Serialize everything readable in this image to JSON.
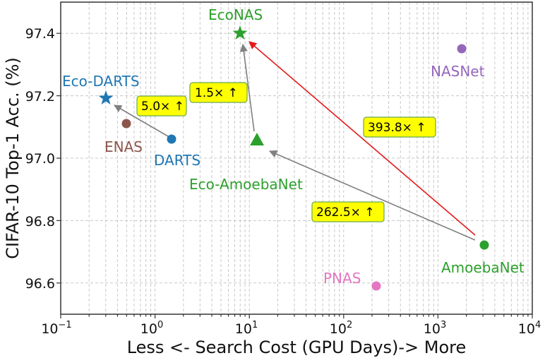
{
  "chart_data": {
    "type": "scatter",
    "title": "",
    "xlabel": "Less <- Search Cost (GPU Days)-> More",
    "ylabel": "CIFAR-10 Top-1 Acc. (%)",
    "xscale": "log",
    "xlim": [
      0.1,
      10000
    ],
    "ylim": [
      96.5,
      97.5
    ],
    "grid": true,
    "legend": null,
    "x_ticks": [
      {
        "base": "10",
        "exp": "−1",
        "value": 0.1
      },
      {
        "base": "10",
        "exp": "0",
        "value": 1
      },
      {
        "base": "10",
        "exp": "1",
        "value": 10
      },
      {
        "base": "10",
        "exp": "2",
        "value": 100
      },
      {
        "base": "10",
        "exp": "3",
        "value": 1000
      },
      {
        "base": "10",
        "exp": "4",
        "value": 10000
      }
    ],
    "y_ticks": [
      "96.6",
      "96.8",
      "97.0",
      "97.2",
      "97.4"
    ],
    "points": [
      {
        "name": "Eco-DARTS",
        "x": 0.3,
        "y": 97.19,
        "marker": "star",
        "color": "#1f77b4"
      },
      {
        "name": "ENAS",
        "x": 0.5,
        "y": 97.11,
        "marker": "circle",
        "color": "#8c564b"
      },
      {
        "name": "DARTS",
        "x": 1.5,
        "y": 97.06,
        "marker": "circle",
        "color": "#1f77b4"
      },
      {
        "name": "EcoNAS",
        "x": 8,
        "y": 97.4,
        "marker": "star",
        "color": "#2ca02c"
      },
      {
        "name": "Eco-AmoebaNet",
        "x": 12,
        "y": 97.06,
        "marker": "triangle",
        "color": "#2ca02c"
      },
      {
        "name": "NASNet",
        "x": 1800,
        "y": 97.35,
        "marker": "circle",
        "color": "#9467bd"
      },
      {
        "name": "AmoebaNet",
        "x": 3150,
        "y": 96.72,
        "marker": "circle",
        "color": "#2ca02c"
      },
      {
        "name": "PNAS",
        "x": 225,
        "y": 96.59,
        "marker": "circle",
        "color": "#e377c2"
      }
    ],
    "arrows": [
      {
        "from": "DARTS",
        "to": "Eco-DARTS",
        "color": "#808080",
        "label": "5.0× ↑"
      },
      {
        "from": "Eco-AmoebaNet",
        "to": "EcoNAS",
        "color": "#808080",
        "label": "1.5× ↑"
      },
      {
        "from": "AmoebaNet",
        "to": "EcoNAS",
        "color": "#e41a1c",
        "label": "393.8× ↑"
      },
      {
        "from": "AmoebaNet",
        "to": "Eco-AmoebaNet",
        "color": "#808080",
        "label": "262.5× ↑"
      }
    ]
  },
  "labels": {
    "eco_darts": "Eco-DARTS",
    "enas": "ENAS",
    "darts": "DARTS",
    "econas": "EcoNAS",
    "eco_amoebanet": "Eco-AmoebaNet",
    "nasnet": "NASNet",
    "amoebanet": "AmoebaNet",
    "pnas": "PNAS"
  },
  "annotations": {
    "a1": "5.0× ↑",
    "a2": "1.5× ↑",
    "a3": "393.8× ↑",
    "a4": "262.5× ↑"
  },
  "axes": {
    "xlabel": "Less <- Search Cost (GPU Days)-> More",
    "ylabel": "CIFAR-10 Top-1 Acc. (%)",
    "y_ticks": [
      "96.6",
      "96.8",
      "97.0",
      "97.2",
      "97.4"
    ],
    "x_base": "10",
    "x_exps": [
      "−1",
      "0",
      "1",
      "2",
      "3",
      "4"
    ]
  },
  "colors": {
    "blue": "#1f77b4",
    "brown": "#8c564b",
    "green": "#2ca02c",
    "purple": "#9467bd",
    "pink": "#e377c2",
    "red": "#e41a1c",
    "gray": "#808080",
    "annotation_bg": "#ffff00",
    "annotation_border": "#6aa84f"
  }
}
